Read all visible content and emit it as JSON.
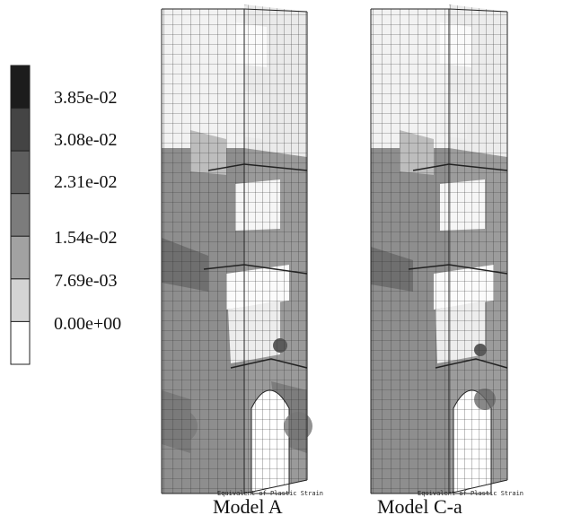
{
  "legend": {
    "colors": [
      "#1c1c1c",
      "#444444",
      "#5e5e5e",
      "#7c7c7c",
      "#a2a2a2",
      "#d4d4d4",
      "#ffffff"
    ],
    "labels": [
      "3.85e-02",
      "3.08e-02",
      "2.31e-02",
      "1.54e-02",
      "7.69e-03",
      "0.00e+00"
    ]
  },
  "models": [
    {
      "caption": "Model A",
      "overlay": "Equivalent of Plastic Strain"
    },
    {
      "caption": "Model C-a",
      "overlay": "Equivalent of Plastic Strain"
    }
  ]
}
